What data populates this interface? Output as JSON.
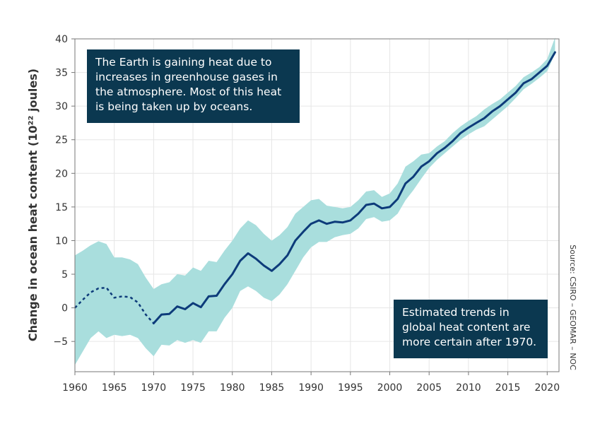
{
  "chart_data": {
    "type": "line",
    "ylabel": "Change in ocean heat content (10²² joules)",
    "xlim": [
      1960,
      2021.5
    ],
    "ylim": [
      -9.5,
      40
    ],
    "x_ticks": [
      1960,
      1965,
      1970,
      1975,
      1980,
      1985,
      1990,
      1995,
      2000,
      2005,
      2010,
      2015,
      2020
    ],
    "y_ticks": [
      -5,
      0,
      5,
      10,
      15,
      20,
      25,
      30,
      35,
      40
    ],
    "y_tick_labels": [
      "−5",
      "0",
      "5",
      "10",
      "15",
      "20",
      "25",
      "30",
      "35",
      "40"
    ],
    "grid": true,
    "colors": {
      "line": "#0d3b7a",
      "band": "#a9dedd",
      "callout": "#0b3850"
    },
    "series": [
      {
        "style": "dashed",
        "x": [
          1960,
          1961,
          1962,
          1963,
          1964,
          1965,
          1966,
          1967,
          1968,
          1969,
          1970
        ],
        "y": [
          0.0,
          1.2,
          2.3,
          2.9,
          3.0,
          1.5,
          1.7,
          1.6,
          0.8,
          -1.0,
          -2.3
        ]
      },
      {
        "style": "solid",
        "x": [
          1970,
          1971,
          1972,
          1973,
          1974,
          1975,
          1976,
          1977,
          1978,
          1979,
          1980,
          1981,
          1982,
          1983,
          1984,
          1985,
          1986,
          1987,
          1988,
          1989,
          1990,
          1991,
          1992,
          1993,
          1994,
          1995,
          1996,
          1997,
          1998,
          1999,
          2000,
          2001,
          2002,
          2003,
          2004,
          2005,
          2006,
          2007,
          2008,
          2009,
          2010,
          2011,
          2012,
          2013,
          2014,
          2015,
          2016,
          2017,
          2018,
          2019,
          2020,
          2021
        ],
        "y": [
          -2.3,
          -1.0,
          -0.9,
          0.2,
          -0.2,
          0.7,
          0.1,
          1.7,
          1.8,
          3.5,
          5.0,
          7.0,
          8.1,
          7.3,
          6.3,
          5.5,
          6.5,
          7.8,
          10.0,
          11.3,
          12.5,
          13.0,
          12.5,
          12.8,
          12.7,
          13.0,
          14.0,
          15.3,
          15.5,
          14.8,
          15.0,
          16.2,
          18.5,
          19.5,
          21.0,
          21.8,
          23.0,
          23.8,
          24.8,
          26.0,
          26.8,
          27.5,
          28.2,
          29.2,
          30.0,
          31.0,
          32.0,
          33.4,
          34.0,
          35.0,
          36.0,
          38.0
        ]
      }
    ],
    "band": {
      "x": [
        1960,
        1961,
        1962,
        1963,
        1964,
        1965,
        1966,
        1967,
        1968,
        1969,
        1970,
        1971,
        1972,
        1973,
        1974,
        1975,
        1976,
        1977,
        1978,
        1979,
        1980,
        1981,
        1982,
        1983,
        1984,
        1985,
        1986,
        1987,
        1988,
        1989,
        1990,
        1991,
        1992,
        1993,
        1994,
        1995,
        1996,
        1997,
        1998,
        1999,
        2000,
        2001,
        2002,
        2003,
        2004,
        2005,
        2006,
        2007,
        2008,
        2009,
        2010,
        2011,
        2012,
        2013,
        2014,
        2015,
        2016,
        2017,
        2018,
        2019,
        2020,
        2021
      ],
      "upper": [
        7.8,
        8.5,
        9.3,
        9.9,
        9.5,
        7.5,
        7.5,
        7.2,
        6.5,
        4.5,
        2.8,
        3.5,
        3.8,
        5.0,
        4.8,
        6.0,
        5.5,
        7.0,
        6.8,
        8.5,
        10.0,
        11.8,
        13.0,
        12.3,
        11.0,
        10.0,
        10.8,
        12.0,
        14.0,
        15.0,
        16.0,
        16.2,
        15.2,
        15.0,
        14.8,
        15.0,
        16.0,
        17.3,
        17.5,
        16.5,
        17.0,
        18.5,
        21.0,
        21.8,
        22.8,
        23.0,
        24.0,
        24.8,
        26.0,
        27.0,
        27.8,
        28.5,
        29.5,
        30.3,
        31.0,
        32.0,
        33.0,
        34.3,
        35.0,
        35.8,
        37.0,
        40.2
      ],
      "lower": [
        -8.5,
        -6.5,
        -4.5,
        -3.5,
        -4.5,
        -4.0,
        -4.2,
        -4.0,
        -4.5,
        -6.0,
        -7.2,
        -5.5,
        -5.6,
        -4.8,
        -5.2,
        -4.8,
        -5.2,
        -3.5,
        -3.5,
        -1.5,
        0.0,
        2.5,
        3.2,
        2.5,
        1.5,
        1.0,
        2.0,
        3.5,
        5.5,
        7.5,
        9.0,
        9.8,
        9.8,
        10.5,
        10.8,
        11.0,
        11.8,
        13.2,
        13.5,
        12.8,
        13.0,
        14.0,
        16.0,
        17.5,
        19.2,
        20.8,
        22.0,
        23.0,
        24.0,
        25.0,
        25.8,
        26.5,
        27.0,
        28.0,
        29.0,
        30.0,
        31.2,
        32.5,
        33.3,
        34.2,
        35.2,
        37.8
      ]
    },
    "source": "Source: CSIRO – GEOMAR – NOC"
  },
  "callouts": {
    "top": [
      "The Earth is gaining heat due to",
      "increases in greenhouse gases in",
      "the atmosphere. Most of this heat",
      "is being taken up by oceans."
    ],
    "bottom": [
      "Estimated trends in",
      "global heat content are",
      "more certain after 1970."
    ]
  }
}
